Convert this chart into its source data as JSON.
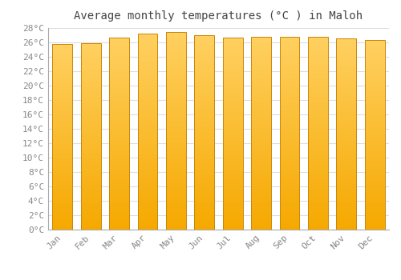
{
  "title": "Average monthly temperatures (°C ) in Maloh",
  "months": [
    "Jan",
    "Feb",
    "Mar",
    "Apr",
    "May",
    "Jun",
    "Jul",
    "Aug",
    "Sep",
    "Oct",
    "Nov",
    "Dec"
  ],
  "values": [
    25.8,
    25.9,
    26.7,
    27.2,
    27.5,
    27.0,
    26.7,
    26.8,
    26.8,
    26.8,
    26.6,
    26.3
  ],
  "ylim": [
    0,
    28
  ],
  "ytick_step": 2,
  "bar_color_bottom": "#F5A800",
  "bar_color_top": "#FFD060",
  "bar_edge_color": "#C8860A",
  "background_color": "#ffffff",
  "plot_bg_color": "#ffffff",
  "grid_color": "#dddddd",
  "title_fontsize": 10,
  "tick_fontsize": 8,
  "title_font": "monospace",
  "tick_font": "monospace",
  "bar_width": 0.7
}
